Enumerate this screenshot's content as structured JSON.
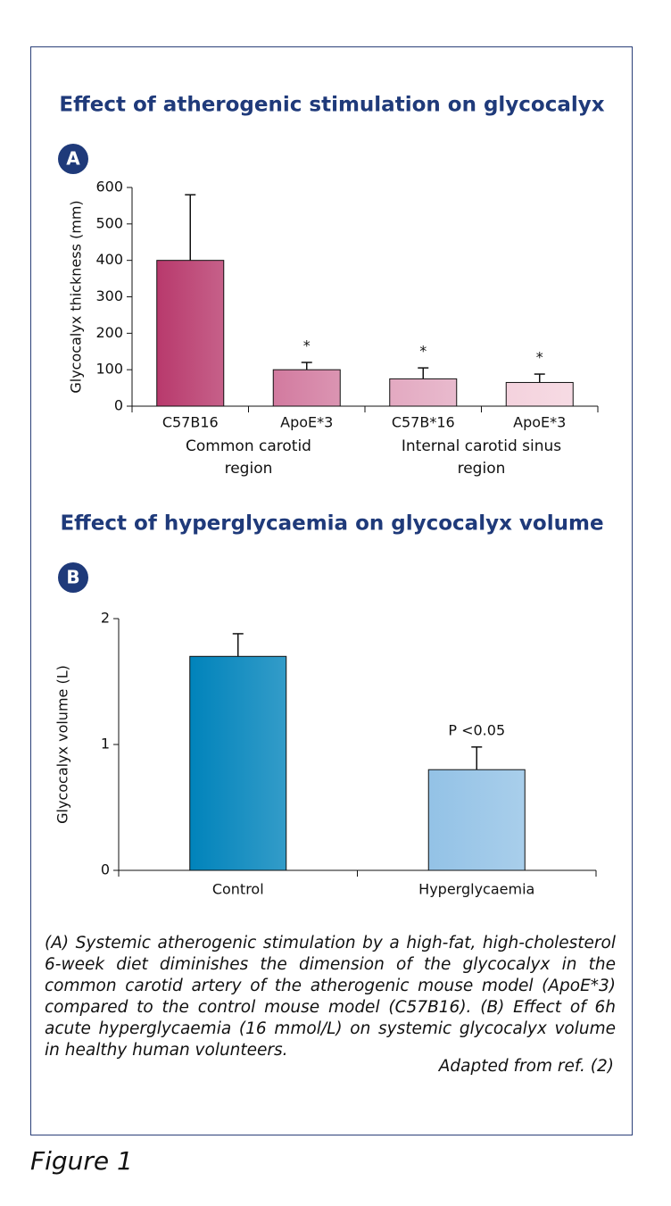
{
  "chart_data": [
    {
      "type": "bar",
      "panel": "A",
      "title": "Effect of atherogenic stimulation on glycocalyx",
      "ylabel": "Glycocalyx thickness (mm)",
      "categories": [
        "C57B16",
        "ApoE*3",
        "C57B*16",
        "ApoE*3"
      ],
      "groups": [
        [
          "Common carotid",
          "region"
        ],
        [
          "Internal carotid sinus",
          "region"
        ]
      ],
      "values": [
        400,
        100,
        75,
        65
      ],
      "errors": [
        180,
        20,
        30,
        23
      ],
      "markers": [
        null,
        "*",
        "*",
        "*"
      ],
      "colors": [
        "#b8396c",
        "#d27a9f",
        "#e3a9c1",
        "#f4d2dd"
      ],
      "ylim": [
        0,
        600
      ],
      "yticks": [
        0,
        100,
        200,
        300,
        400,
        500,
        600
      ]
    },
    {
      "type": "bar",
      "panel": "B",
      "title": "Effect of hyperglycaemia on glycocalyx volume",
      "ylabel": "Glycocalyx volume (L)",
      "categories": [
        "Control",
        "Hyperglycaemia"
      ],
      "values": [
        1.7,
        0.8
      ],
      "errors": [
        0.18,
        0.18
      ],
      "markers": [
        null,
        "P <0.05"
      ],
      "colors": [
        "#0083bb",
        "#93c2e6"
      ],
      "ylim": [
        0,
        2
      ],
      "yticks": [
        0,
        1,
        2
      ]
    }
  ],
  "caption": "(A) Systemic atherogenic stimulation by a high-fat, high-cholesterol 6-week diet diminishes the dimension of the glycocalyx in the common carotid artery of the atherogenic mouse model (ApoE*3) compared to the control mouse model (C57B16). (B) Effect of 6h acute hyperglycaemia (16 mmol/L) on systemic glycocalyx volume in healthy human volunteers.",
  "source": "Adapted from ref. (2)",
  "figure_label": "Figure 1"
}
